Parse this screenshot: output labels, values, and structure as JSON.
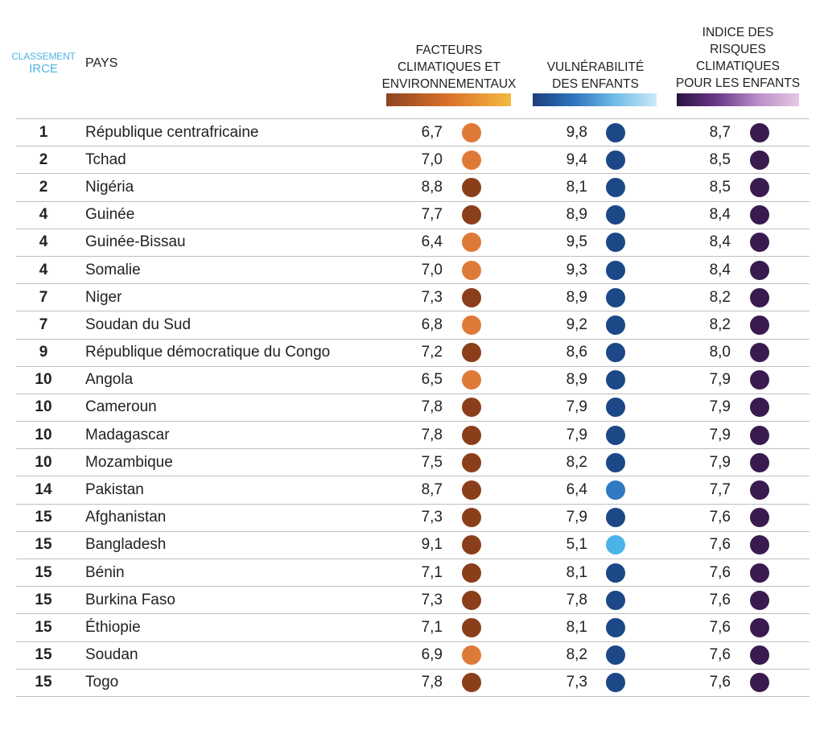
{
  "header": {
    "rank_line1": "CLASSEMENT",
    "rank_line2": "IRCE",
    "country": "PAYS",
    "col1": "FACTEURS\nCLIMATIQUES ET\nENVIRONNEMENTAUX",
    "col2": "VULNÉRABILITÉ\nDES ENFANTS",
    "col3": "INDICE DES\nRISQUES\nCLIMATIQUES\nPOUR LES ENFANTS"
  },
  "colors": {
    "orange": "#de7a38",
    "brown": "#8a3f1a",
    "navy": "#1c4887",
    "mid_blue": "#2f7ac2",
    "light_blue": "#4ab4e8",
    "purple": "#3a1b4f"
  },
  "chart_data": {
    "type": "table",
    "columns": [
      "CLASSEMENT IRCE",
      "PAYS",
      "FACTEURS CLIMATIQUES ET ENVIRONNEMENTAUX",
      "VULNÉRABILITÉ DES ENFANTS",
      "INDICE DES RISQUES CLIMATIQUES POUR LES ENFANTS"
    ],
    "rows": [
      {
        "rank": "1",
        "country": "République centrafricaine",
        "climate": "6,7",
        "climate_color": "orange",
        "vuln": "9,8",
        "vuln_color": "navy",
        "index": "8,7"
      },
      {
        "rank": "2",
        "country": "Tchad",
        "climate": "7,0",
        "climate_color": "orange",
        "vuln": "9,4",
        "vuln_color": "navy",
        "index": "8,5"
      },
      {
        "rank": "2",
        "country": "Nigéria",
        "climate": "8,8",
        "climate_color": "brown",
        "vuln": "8,1",
        "vuln_color": "navy",
        "index": "8,5"
      },
      {
        "rank": "4",
        "country": "Guinée",
        "climate": "7,7",
        "climate_color": "brown",
        "vuln": "8,9",
        "vuln_color": "navy",
        "index": "8,4"
      },
      {
        "rank": "4",
        "country": "Guinée-Bissau",
        "climate": "6,4",
        "climate_color": "orange",
        "vuln": "9,5",
        "vuln_color": "navy",
        "index": "8,4"
      },
      {
        "rank": "4",
        "country": "Somalie",
        "climate": "7,0",
        "climate_color": "orange",
        "vuln": "9,3",
        "vuln_color": "navy",
        "index": "8,4"
      },
      {
        "rank": "7",
        "country": "Niger",
        "climate": "7,3",
        "climate_color": "brown",
        "vuln": "8,9",
        "vuln_color": "navy",
        "index": "8,2"
      },
      {
        "rank": "7",
        "country": "Soudan du Sud",
        "climate": "6,8",
        "climate_color": "orange",
        "vuln": "9,2",
        "vuln_color": "navy",
        "index": "8,2"
      },
      {
        "rank": "9",
        "country": "République démocratique du Congo",
        "climate": "7,2",
        "climate_color": "brown",
        "vuln": "8,6",
        "vuln_color": "navy",
        "index": "8,0"
      },
      {
        "rank": "10",
        "country": "Angola",
        "climate": "6,5",
        "climate_color": "orange",
        "vuln": "8,9",
        "vuln_color": "navy",
        "index": "7,9"
      },
      {
        "rank": "10",
        "country": "Cameroun",
        "climate": "7,8",
        "climate_color": "brown",
        "vuln": "7,9",
        "vuln_color": "navy",
        "index": "7,9"
      },
      {
        "rank": "10",
        "country": "Madagascar",
        "climate": "7,8",
        "climate_color": "brown",
        "vuln": "7,9",
        "vuln_color": "navy",
        "index": "7,9"
      },
      {
        "rank": "10",
        "country": "Mozambique",
        "climate": "7,5",
        "climate_color": "brown",
        "vuln": "8,2",
        "vuln_color": "navy",
        "index": "7,9"
      },
      {
        "rank": "14",
        "country": "Pakistan",
        "climate": "8,7",
        "climate_color": "brown",
        "vuln": "6,4",
        "vuln_color": "mid_blue",
        "index": "7,7"
      },
      {
        "rank": "15",
        "country": "Afghanistan",
        "climate": "7,3",
        "climate_color": "brown",
        "vuln": "7,9",
        "vuln_color": "navy",
        "index": "7,6"
      },
      {
        "rank": "15",
        "country": "Bangladesh",
        "climate": "9,1",
        "climate_color": "brown",
        "vuln": "5,1",
        "vuln_color": "light_blue",
        "index": "7,6"
      },
      {
        "rank": "15",
        "country": "Bénin",
        "climate": "7,1",
        "climate_color": "brown",
        "vuln": "8,1",
        "vuln_color": "navy",
        "index": "7,6"
      },
      {
        "rank": "15",
        "country": "Burkina Faso",
        "climate": "7,3",
        "climate_color": "brown",
        "vuln": "7,8",
        "vuln_color": "navy",
        "index": "7,6"
      },
      {
        "rank": "15",
        "country": "Éthiopie",
        "climate": "7,1",
        "climate_color": "brown",
        "vuln": "8,1",
        "vuln_color": "navy",
        "index": "7,6"
      },
      {
        "rank": "15",
        "country": "Soudan",
        "climate": "6,9",
        "climate_color": "orange",
        "vuln": "8,2",
        "vuln_color": "navy",
        "index": "7,6"
      },
      {
        "rank": "15",
        "country": "Togo",
        "climate": "7,8",
        "climate_color": "brown",
        "vuln": "7,3",
        "vuln_color": "navy",
        "index": "7,6"
      }
    ]
  }
}
